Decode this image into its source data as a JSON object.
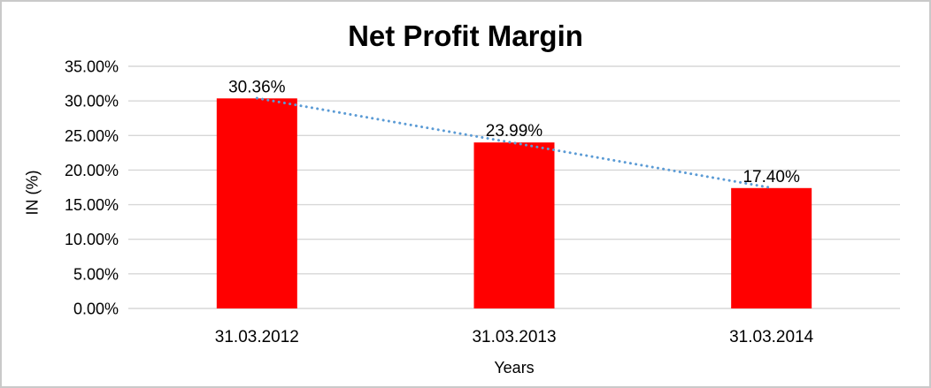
{
  "chart_data": {
    "type": "bar",
    "title": "Net Profit Margin",
    "xlabel": "Years",
    "ylabel": "IN (%)",
    "categories": [
      "31.03.2012",
      "31.03.2013",
      "31.03.2014"
    ],
    "series": [
      {
        "name": "Net Profit Margin",
        "values": [
          30.36,
          23.99,
          17.4
        ]
      }
    ],
    "data_labels": [
      "30.36%",
      "23.99%",
      "17.40%"
    ],
    "y_ticks": [
      {
        "value": 35,
        "label": "35.00%"
      },
      {
        "value": 30,
        "label": "30.00%"
      },
      {
        "value": 25,
        "label": "25.00%"
      },
      {
        "value": 20,
        "label": "20.00%"
      },
      {
        "value": 15,
        "label": "15.00%"
      },
      {
        "value": 10,
        "label": "10.00%"
      },
      {
        "value": 5,
        "label": "5.00%"
      },
      {
        "value": 0,
        "label": "0.00%"
      }
    ],
    "ylim": [
      0,
      35
    ],
    "grid": true,
    "legend": "none",
    "trendline": {
      "type": "linear",
      "style": "dotted"
    },
    "colors": {
      "bar": "#FF0000",
      "trendline": "#5B9BD5",
      "gridline": "#D7D7D7",
      "text": "#000000"
    }
  }
}
